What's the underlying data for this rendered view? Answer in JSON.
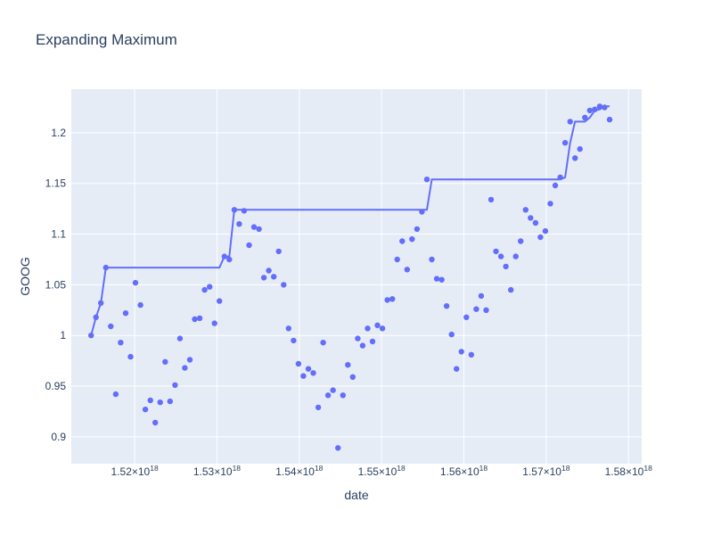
{
  "chart_data": {
    "type": "scatter",
    "title": "Expanding Maximum",
    "xlabel": "date",
    "ylabel": "GOOG",
    "xlim": [
      1.5123e+18,
      1.5816e+18
    ],
    "ylim": [
      0.8735,
      1.243
    ],
    "x_ticks": [
      {
        "value": 1.52e+18,
        "base": "1.52×10",
        "exp": "18"
      },
      {
        "value": 1.53e+18,
        "base": "1.53×10",
        "exp": "18"
      },
      {
        "value": 1.54e+18,
        "base": "1.54×10",
        "exp": "18"
      },
      {
        "value": 1.55e+18,
        "base": "1.55×10",
        "exp": "18"
      },
      {
        "value": 1.56e+18,
        "base": "1.56×10",
        "exp": "18"
      },
      {
        "value": 1.57e+18,
        "base": "1.57×10",
        "exp": "18"
      },
      {
        "value": 1.58e+18,
        "base": "1.58×10",
        "exp": "18"
      }
    ],
    "y_ticks": [
      {
        "value": 0.9,
        "label": "0.9"
      },
      {
        "value": 0.95,
        "label": "0.95"
      },
      {
        "value": 1.0,
        "label": "1"
      },
      {
        "value": 1.05,
        "label": "1.05"
      },
      {
        "value": 1.1,
        "label": "1.1"
      },
      {
        "value": 1.15,
        "label": "1.15"
      },
      {
        "value": 1.2,
        "label": "1.2"
      }
    ],
    "grid": true,
    "colors": {
      "series": "#636efa",
      "plot_bg": "#e5ecf6",
      "grid": "#ffffff",
      "text": "#2a3f5f"
    },
    "series": [
      {
        "mode": "markers",
        "x": [
          1.5147e+18,
          1.5153e+18,
          1.5159e+18,
          1.5165e+18,
          1.5171e+18,
          1.5177e+18,
          1.5183e+18,
          1.5189e+18,
          1.5195e+18,
          1.5201e+18,
          1.5207e+18,
          1.5213e+18,
          1.5219e+18,
          1.5225e+18,
          1.5231e+18,
          1.5237e+18,
          1.5243e+18,
          1.5249e+18,
          1.5255e+18,
          1.5261e+18,
          1.5267e+18,
          1.5273e+18,
          1.5279e+18,
          1.5285e+18,
          1.5291e+18,
          1.5297e+18,
          1.5303e+18,
          1.5309e+18,
          1.5315e+18,
          1.5321e+18,
          1.5327e+18,
          1.5333e+18,
          1.5339e+18,
          1.5345e+18,
          1.5351e+18,
          1.5357e+18,
          1.5363e+18,
          1.5369e+18,
          1.5375e+18,
          1.5381e+18,
          1.5387e+18,
          1.5393e+18,
          1.5399e+18,
          1.5405e+18,
          1.5411e+18,
          1.5417e+18,
          1.5423e+18,
          1.5429e+18,
          1.5435e+18,
          1.5441e+18,
          1.5447e+18,
          1.5453e+18,
          1.5459e+18,
          1.5465e+18,
          1.5471e+18,
          1.5477e+18,
          1.5483e+18,
          1.5489e+18,
          1.5495e+18,
          1.5501e+18,
          1.5507e+18,
          1.5513e+18,
          1.5519e+18,
          1.5525e+18,
          1.5531e+18,
          1.5537e+18,
          1.5543e+18,
          1.5549e+18,
          1.5555e+18,
          1.5561e+18,
          1.5567e+18,
          1.5573e+18,
          1.5579e+18,
          1.5585e+18,
          1.5591e+18,
          1.5597e+18,
          1.5603e+18,
          1.5609e+18,
          1.5615e+18,
          1.5621e+18,
          1.5627e+18,
          1.5633e+18,
          1.5639e+18,
          1.5645e+18,
          1.5651e+18,
          1.5657e+18,
          1.5663e+18,
          1.5669e+18,
          1.5675e+18,
          1.5681e+18,
          1.5687e+18,
          1.5693e+18,
          1.5699e+18,
          1.5705e+18,
          1.5711e+18,
          1.5717e+18,
          1.5723e+18,
          1.5729e+18,
          1.5735e+18,
          1.5741e+18,
          1.5747e+18,
          1.5753e+18,
          1.5759e+18,
          1.5765e+18,
          1.5771e+18,
          1.5777e+18
        ],
        "y": [
          1.0,
          1.018,
          1.032,
          1.067,
          1.009,
          0.942,
          0.993,
          1.022,
          0.979,
          1.052,
          1.03,
          0.927,
          0.936,
          0.914,
          0.934,
          0.974,
          0.935,
          0.951,
          0.997,
          0.968,
          0.976,
          1.016,
          1.017,
          1.045,
          1.048,
          1.012,
          1.034,
          1.078,
          1.075,
          1.124,
          1.11,
          1.123,
          1.089,
          1.107,
          1.105,
          1.057,
          1.064,
          1.058,
          1.083,
          1.05,
          1.007,
          0.995,
          0.972,
          0.96,
          0.967,
          0.963,
          0.929,
          0.993,
          0.941,
          0.946,
          0.889,
          0.941,
          0.971,
          0.959,
          0.997,
          0.99,
          1.007,
          0.994,
          1.01,
          1.007,
          1.035,
          1.036,
          1.075,
          1.093,
          1.065,
          1.095,
          1.105,
          1.122,
          1.154,
          1.075,
          1.056,
          1.055,
          1.029,
          1.001,
          0.967,
          0.984,
          1.018,
          0.981,
          1.026,
          1.039,
          1.025,
          1.134,
          1.083,
          1.078,
          1.068,
          1.045,
          1.078,
          1.093,
          1.124,
          1.116,
          1.111,
          1.097,
          1.103,
          1.13,
          1.148,
          1.156,
          1.19,
          1.211,
          1.175,
          1.184,
          1.215,
          1.222,
          1.223,
          1.226,
          1.225,
          1.213
        ]
      },
      {
        "mode": "lines",
        "x": [
          1.5147e+18,
          1.5153e+18,
          1.5159e+18,
          1.5165e+18,
          1.5303e+18,
          1.5309e+18,
          1.5315e+18,
          1.5321e+18,
          1.5549e+18,
          1.5555e+18,
          1.5561e+18,
          1.5717e+18,
          1.5723e+18,
          1.5729e+18,
          1.5735e+18,
          1.5741e+18,
          1.5747e+18,
          1.5753e+18,
          1.5759e+18,
          1.5765e+18,
          1.5771e+18,
          1.5777e+18
        ],
        "y": [
          1.0,
          1.018,
          1.032,
          1.067,
          1.067,
          1.078,
          1.078,
          1.124,
          1.124,
          1.124,
          1.154,
          1.154,
          1.156,
          1.19,
          1.211,
          1.211,
          1.211,
          1.215,
          1.222,
          1.223,
          1.226,
          1.226
        ]
      }
    ]
  }
}
